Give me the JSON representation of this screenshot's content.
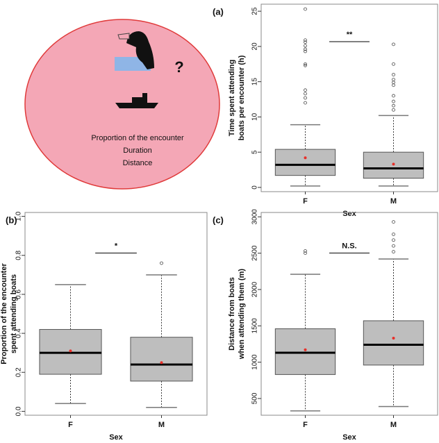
{
  "diagram": {
    "question": "?",
    "texts": [
      "Proportion of the encounter",
      "Duration",
      "Distance"
    ]
  },
  "chart_data": [
    {
      "type": "box",
      "panel": "(a)",
      "xlabel": "Sex",
      "ylabel": [
        "Time spent attending",
        "boats per encounter (h)"
      ],
      "categories": [
        "F",
        "M"
      ],
      "ylim": [
        -0.6,
        26
      ],
      "yticks": [
        0,
        5,
        10,
        15,
        20,
        25
      ],
      "box_color": "#bebebe",
      "mean_color": "#e8302a",
      "significance": "**",
      "boxes": [
        {
          "whisker_low": 0.2,
          "q1": 1.7,
          "median": 3.2,
          "q3": 5.4,
          "whisker_high": 8.9,
          "mean": 4.2,
          "outliers": [
            12.0,
            12.7,
            13.3,
            13.8,
            17.3,
            17.5,
            19.3,
            19.6,
            20.1,
            20.6,
            20.9,
            25.3
          ]
        },
        {
          "whisker_low": 0.2,
          "q1": 1.3,
          "median": 2.7,
          "q3": 5.0,
          "whisker_high": 10.2,
          "mean": 3.3,
          "outliers": [
            11.0,
            11.6,
            12.2,
            13.0,
            14.5,
            14.9,
            15.3,
            16.0,
            17.5,
            20.3
          ]
        }
      ]
    },
    {
      "type": "box",
      "panel": "(b)",
      "xlabel": "Sex",
      "ylabel": [
        "Proportion of the encounter",
        "spent attending boats"
      ],
      "categories": [
        "F",
        "M"
      ],
      "ylim": [
        -0.02,
        1.02
      ],
      "yticks": [
        {
          "value": 0,
          "label": "0.0"
        },
        0.2,
        0.4,
        0.6,
        0.8,
        {
          "value": 1,
          "label": "1.0"
        }
      ],
      "box_color": "#bebebe",
      "mean_color": "#e8302a",
      "significance": "*",
      "boxes": [
        {
          "whisker_low": 0.04,
          "q1": 0.19,
          "median": 0.3,
          "q3": 0.42,
          "whisker_high": 0.65,
          "mean": 0.31,
          "outliers": []
        },
        {
          "whisker_low": 0.02,
          "q1": 0.155,
          "median": 0.24,
          "q3": 0.38,
          "whisker_high": 0.7,
          "mean": 0.25,
          "outliers": [
            0.76
          ]
        }
      ]
    },
    {
      "type": "box",
      "panel": "(c)",
      "xlabel": "Sex",
      "ylabel": [
        "Distance from boats",
        "when attending them (m)"
      ],
      "categories": [
        "F",
        "M"
      ],
      "ylim": [
        270,
        3060
      ],
      "yticks": [
        500,
        1000,
        1500,
        2000,
        2500,
        3000
      ],
      "box_color": "#bebebe",
      "mean_color": "#e8302a",
      "significance": "N.S.",
      "boxes": [
        {
          "whisker_low": 330,
          "q1": 830,
          "median": 1130,
          "q3": 1460,
          "whisker_high": 2210,
          "mean": 1170,
          "outliers": [
            2500,
            2530
          ]
        },
        {
          "whisker_low": 390,
          "q1": 960,
          "median": 1240,
          "q3": 1570,
          "whisker_high": 2420,
          "mean": 1330,
          "outliers": [
            2520,
            2600,
            2680,
            2760,
            2930
          ]
        }
      ]
    }
  ]
}
